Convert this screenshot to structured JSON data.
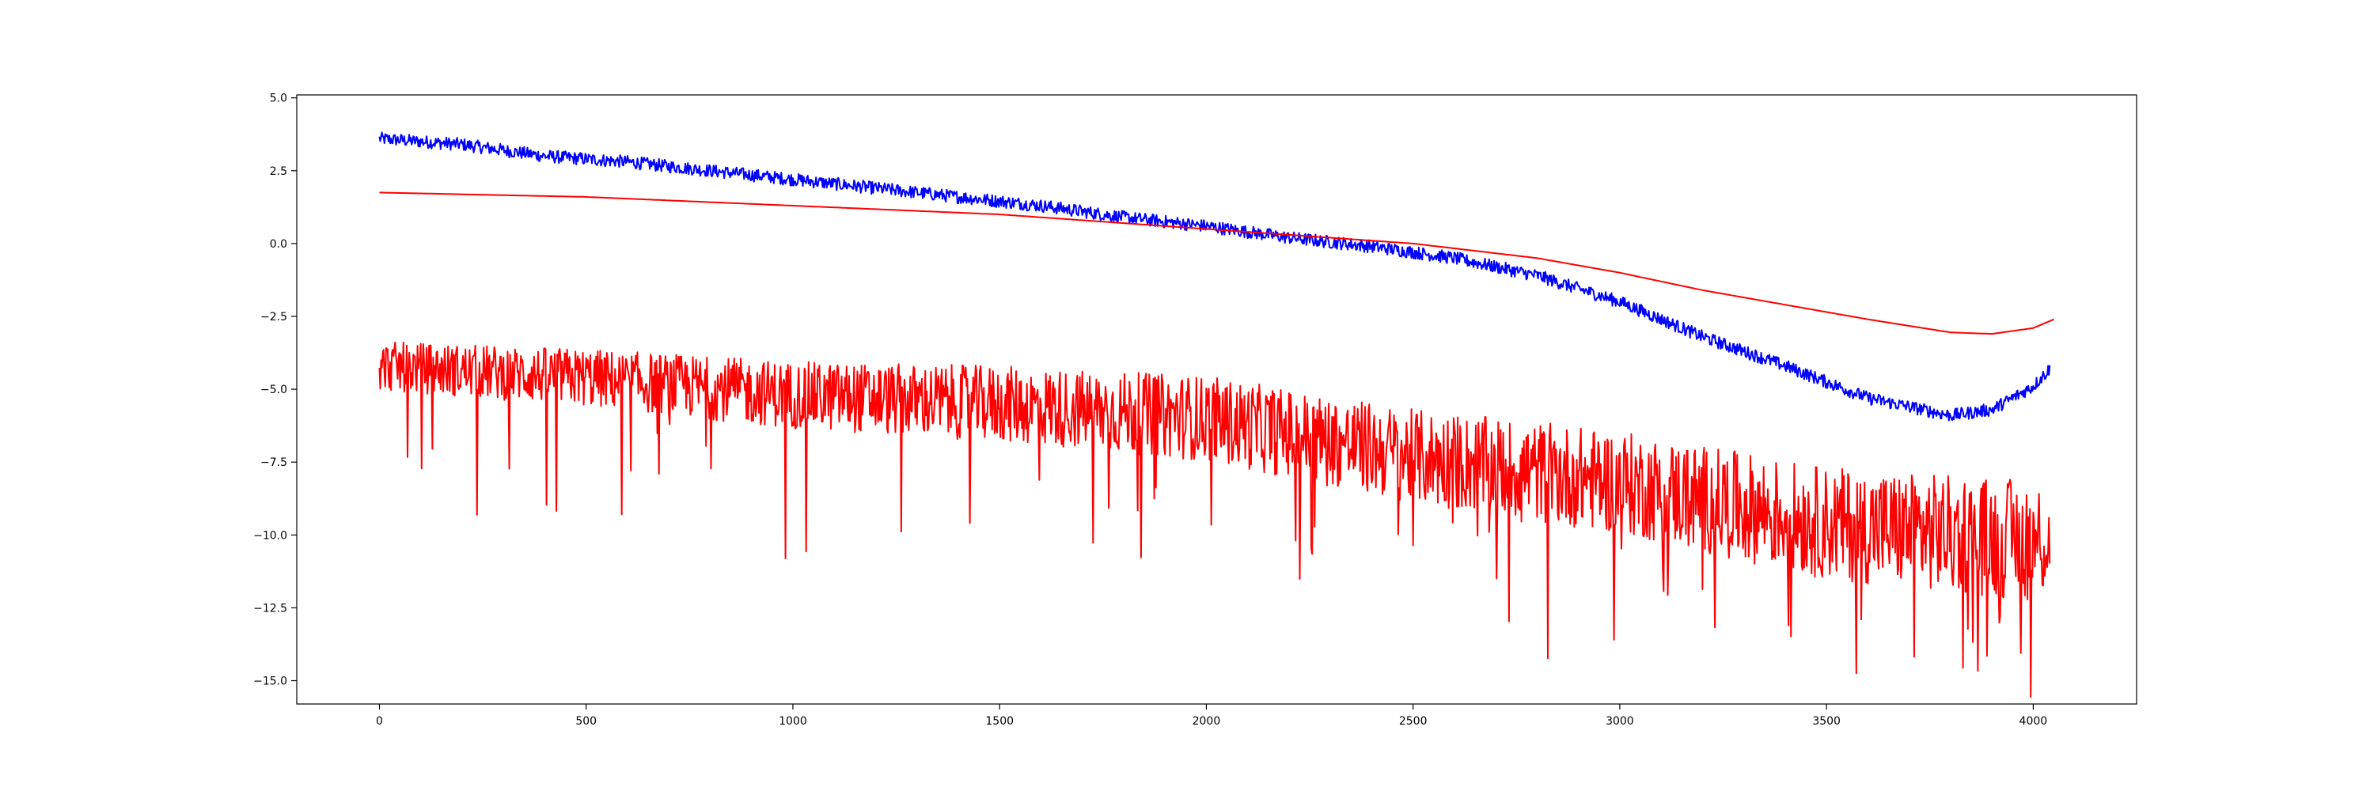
{
  "chart_data": {
    "type": "line",
    "title": "",
    "xlabel": "",
    "ylabel": "",
    "xlim": [
      -200,
      4250
    ],
    "ylim": [
      -15.8,
      5.1
    ],
    "grid": false,
    "legend": "none",
    "xticks": [
      0,
      500,
      1000,
      1500,
      2000,
      2500,
      3000,
      3500,
      4000
    ],
    "yticks": [
      5.0,
      2.5,
      0.0,
      -2.5,
      -5.0,
      -7.5,
      -10.0,
      -12.5,
      -15.0
    ],
    "xtick_labels": [
      "0",
      "500",
      "1000",
      "1500",
      "2000",
      "2500",
      "3000",
      "3500",
      "4000"
    ],
    "ytick_labels": [
      "5.0",
      "2.5",
      "0.0",
      "−2.5",
      "−5.0",
      "−7.5",
      "−10.0",
      "−12.5",
      "−15.0"
    ],
    "series": [
      {
        "color": "#0000ff",
        "x": [
          0,
          200,
          400,
          600,
          800,
          1000,
          1200,
          1400,
          1600,
          1800,
          2000,
          2200,
          2400,
          2600,
          2800,
          3000,
          3200,
          3400,
          3600,
          3800,
          3900,
          4000,
          4040
        ],
        "y": [
          3.6,
          3.4,
          3.0,
          2.8,
          2.5,
          2.2,
          1.9,
          1.6,
          1.3,
          0.9,
          0.6,
          0.2,
          -0.1,
          -0.5,
          -1.1,
          -2.0,
          -3.2,
          -4.2,
          -5.3,
          -5.9,
          -5.7,
          -4.9,
          -4.3
        ],
        "noise": 0.22
      },
      {
        "color": "#ff0000",
        "x": [
          0,
          500,
          1000,
          1500,
          2000,
          2500,
          2800,
          3000,
          3200,
          3400,
          3600,
          3800,
          3900,
          4000,
          4050
        ],
        "y": [
          1.75,
          1.6,
          1.3,
          1.0,
          0.5,
          0.0,
          -0.5,
          -1.0,
          -1.6,
          -2.1,
          -2.6,
          -3.05,
          -3.1,
          -2.9,
          -2.6
        ],
        "noise": 0
      },
      {
        "color": "#ff0000",
        "x": [
          0,
          500,
          1000,
          1500,
          2000,
          2500,
          3000,
          3500,
          4000,
          4040
        ],
        "y": [
          -4.2,
          -4.6,
          -5.2,
          -5.5,
          -6.0,
          -7.3,
          -8.2,
          -9.6,
          -10.2,
          -10.0
        ],
        "noise": 1.4,
        "spiky": true
      }
    ]
  }
}
